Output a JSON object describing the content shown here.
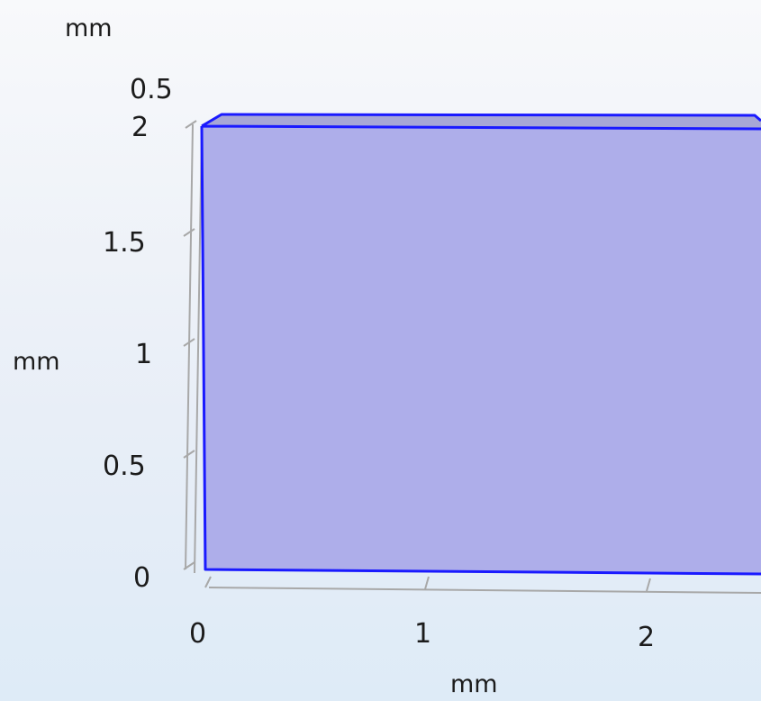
{
  "viewport": {
    "units": {
      "top": "mm",
      "left": "mm",
      "bottom": "mm"
    },
    "z_axis_ticks": [
      "0.5"
    ],
    "y_axis_ticks": [
      "2",
      "1.5",
      "1",
      "0.5",
      "0"
    ],
    "x_axis_ticks": [
      "0",
      "1",
      "2"
    ]
  },
  "colors": {
    "domain_fill": "#aeaeea",
    "domain_edge": "#1a1aff",
    "axis_line": "#a8a8a8",
    "background_top": "#f8f9fb",
    "background_bottom": "#deebf7"
  }
}
